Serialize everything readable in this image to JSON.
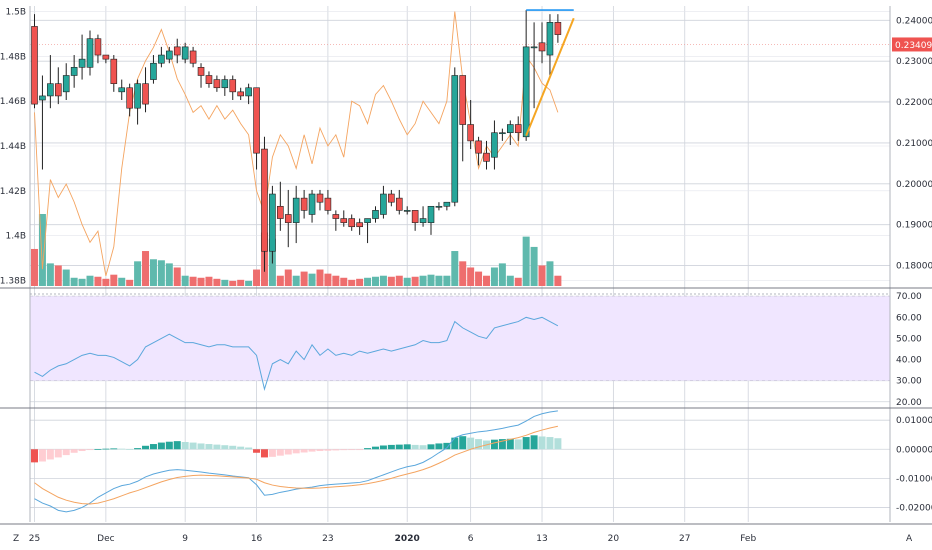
{
  "chart_data": {
    "type": "candlestick",
    "x_labels": [
      {
        "i": 0,
        "text": "25",
        "bold": false
      },
      {
        "i": 9,
        "text": "Dec",
        "bold": false
      },
      {
        "i": 19,
        "text": "9",
        "bold": false
      },
      {
        "i": 28,
        "text": "16",
        "bold": false
      },
      {
        "i": 37,
        "text": "23",
        "bold": false
      },
      {
        "i": 47,
        "text": "2020",
        "bold": true
      },
      {
        "i": 55,
        "text": "6",
        "bold": false
      },
      {
        "i": 64,
        "text": "13",
        "bold": false
      },
      {
        "i": 73,
        "text": "20",
        "bold": false
      },
      {
        "i": 82,
        "text": "27",
        "bold": false
      },
      {
        "i": 90,
        "text": "Feb",
        "bold": false
      }
    ],
    "main": {
      "right_ticks": [
        "0.24000",
        "0.23000",
        "0.22000",
        "0.21000",
        "0.20000",
        "0.19000",
        "0.18000"
      ],
      "right_min": 0.175,
      "right_max": 0.2435,
      "left_ticks": [
        "1.5B",
        "1.48B",
        "1.46B",
        "1.44B",
        "1.42B",
        "1.4B",
        "1.38B"
      ],
      "left_min": 1.3775,
      "left_max": 1.5025,
      "last_price": "0.23409",
      "candles": [
        [
          0,
          0.2385,
          0.2415,
          0.2185,
          0.2195
        ],
        [
          1,
          0.2205,
          0.2265,
          0.2035,
          0.2215
        ],
        [
          2,
          0.2215,
          0.2315,
          0.2185,
          0.2245
        ],
        [
          3,
          0.2245,
          0.2285,
          0.2195,
          0.2215
        ],
        [
          4,
          0.2225,
          0.2295,
          0.2205,
          0.2265
        ],
        [
          5,
          0.2265,
          0.2315,
          0.2235,
          0.2285
        ],
        [
          6,
          0.2285,
          0.2365,
          0.2255,
          0.2305
        ],
        [
          7,
          0.2285,
          0.2375,
          0.2265,
          0.2355
        ],
        [
          8,
          0.2355,
          0.2365,
          0.2295,
          0.2315
        ],
        [
          9,
          0.2315,
          0.2315,
          0.2295,
          0.2305
        ],
        [
          10,
          0.2305,
          0.2315,
          0.2225,
          0.2245
        ],
        [
          11,
          0.2225,
          0.2255,
          0.2205,
          0.2235
        ],
        [
          12,
          0.2235,
          0.2245,
          0.2165,
          0.2185
        ],
        [
          13,
          0.2185,
          0.2255,
          0.2145,
          0.2245
        ],
        [
          14,
          0.2245,
          0.2285,
          0.2175,
          0.2195
        ],
        [
          15,
          0.2255,
          0.2315,
          0.2245,
          0.2295
        ],
        [
          16,
          0.2295,
          0.2335,
          0.2285,
          0.2315
        ],
        [
          17,
          0.2305,
          0.2335,
          0.2295,
          0.2325
        ],
        [
          18,
          0.2335,
          0.2355,
          0.2295,
          0.2315
        ],
        [
          19,
          0.2305,
          0.2345,
          0.2295,
          0.2335
        ],
        [
          20,
          0.2325,
          0.2335,
          0.2285,
          0.2295
        ],
        [
          21,
          0.2285,
          0.2295,
          0.2235,
          0.2265
        ],
        [
          22,
          0.2265,
          0.2275,
          0.2235,
          0.2245
        ],
        [
          23,
          0.2255,
          0.2265,
          0.2225,
          0.2235
        ],
        [
          24,
          0.2235,
          0.2265,
          0.2215,
          0.2255
        ],
        [
          25,
          0.2255,
          0.2265,
          0.2205,
          0.2225
        ],
        [
          26,
          0.2225,
          0.2235,
          0.2205,
          0.2215
        ],
        [
          27,
          0.2215,
          0.2245,
          0.2195,
          0.2235
        ],
        [
          28,
          0.2235,
          0.2235,
          0.2035,
          0.2075
        ],
        [
          29,
          0.2085,
          0.2115,
          0.1785,
          0.1835
        ],
        [
          30,
          0.1835,
          0.1995,
          0.1805,
          0.1975
        ],
        [
          31,
          0.1945,
          0.2005,
          0.1885,
          0.1915
        ],
        [
          32,
          0.1925,
          0.1985,
          0.1845,
          0.1905
        ],
        [
          33,
          0.1905,
          0.1995,
          0.1855,
          0.1965
        ],
        [
          34,
          0.1965,
          0.1985,
          0.1915,
          0.1935
        ],
        [
          35,
          0.1925,
          0.1985,
          0.1905,
          0.1975
        ],
        [
          36,
          0.1975,
          0.1985,
          0.1935,
          0.1955
        ],
        [
          37,
          0.1965,
          0.1985,
          0.1925,
          0.1935
        ],
        [
          38,
          0.1925,
          0.1935,
          0.1885,
          0.1915
        ],
        [
          39,
          0.1915,
          0.1935,
          0.1895,
          0.1905
        ],
        [
          40,
          0.1915,
          0.1925,
          0.1885,
          0.1895
        ],
        [
          41,
          0.1905,
          0.1915,
          0.1875,
          0.1895
        ],
        [
          42,
          0.1905,
          0.1915,
          0.1855,
          0.1915
        ],
        [
          43,
          0.1915,
          0.1945,
          0.1905,
          0.1935
        ],
        [
          44,
          0.1925,
          0.1995,
          0.1915,
          0.1975
        ],
        [
          45,
          0.1975,
          0.1985,
          0.1945,
          0.1955
        ],
        [
          46,
          0.1965,
          0.1985,
          0.1925,
          0.1935
        ],
        [
          47,
          0.1935,
          0.1945,
          0.1925,
          0.1935
        ],
        [
          48,
          0.1935,
          0.1935,
          0.1885,
          0.1905
        ],
        [
          49,
          0.1905,
          0.1945,
          0.1895,
          0.1915
        ],
        [
          50,
          0.1905,
          0.1945,
          0.1875,
          0.1945
        ],
        [
          51,
          0.1945,
          0.1955,
          0.1935,
          0.1945
        ],
        [
          52,
          0.1945,
          0.1955,
          0.1935,
          0.1955
        ],
        [
          53,
          0.1955,
          0.2285,
          0.1945,
          0.2265
        ],
        [
          54,
          0.2265,
          0.2265,
          0.2055,
          0.2145
        ],
        [
          55,
          0.2145,
          0.2205,
          0.2085,
          0.2105
        ],
        [
          56,
          0.2105,
          0.2115,
          0.2045,
          0.2075
        ],
        [
          57,
          0.2075,
          0.2105,
          0.2035,
          0.2055
        ],
        [
          58,
          0.2065,
          0.2155,
          0.2035,
          0.2125
        ],
        [
          59,
          0.2125,
          0.2135,
          0.2105,
          0.2125
        ],
        [
          60,
          0.2125,
          0.2155,
          0.2095,
          0.2145
        ],
        [
          61,
          0.2145,
          0.2165,
          0.2105,
          0.2125
        ],
        [
          62,
          0.2115,
          0.2425,
          0.2105,
          0.2335
        ],
        [
          63,
          0.2335,
          0.2395,
          0.2185,
          0.2335
        ],
        [
          64,
          0.2345,
          0.2395,
          0.2295,
          0.2325
        ],
        [
          65,
          0.2315,
          0.2415,
          0.2265,
          0.2395
        ],
        [
          66,
          0.2395,
          0.2415,
          0.2345,
          0.2365
        ]
      ],
      "line_on_left_scale": [
        [
          0,
          1.455
        ],
        [
          1,
          1.385
        ],
        [
          2,
          1.425
        ],
        [
          3,
          1.417
        ],
        [
          4,
          1.423
        ],
        [
          5,
          1.415
        ],
        [
          6,
          1.405
        ],
        [
          7,
          1.397
        ],
        [
          8,
          1.402
        ],
        [
          9,
          1.382
        ],
        [
          10,
          1.395
        ],
        [
          11,
          1.43
        ],
        [
          12,
          1.455
        ],
        [
          13,
          1.47
        ],
        [
          14,
          1.478
        ],
        [
          15,
          1.484
        ],
        [
          16,
          1.492
        ],
        [
          17,
          1.482
        ],
        [
          18,
          1.47
        ],
        [
          19,
          1.463
        ],
        [
          20,
          1.455
        ],
        [
          21,
          1.458
        ],
        [
          22,
          1.452
        ],
        [
          23,
          1.458
        ],
        [
          24,
          1.452
        ],
        [
          25,
          1.456
        ],
        [
          26,
          1.45
        ],
        [
          27,
          1.445
        ],
        [
          28,
          1.42
        ],
        [
          29,
          1.41
        ],
        [
          30,
          1.435
        ],
        [
          31,
          1.445
        ],
        [
          32,
          1.44
        ],
        [
          33,
          1.43
        ],
        [
          34,
          1.445
        ],
        [
          35,
          1.432
        ],
        [
          36,
          1.448
        ],
        [
          37,
          1.44
        ],
        [
          38,
          1.445
        ],
        [
          39,
          1.435
        ],
        [
          40,
          1.46
        ],
        [
          41,
          1.458
        ],
        [
          42,
          1.45
        ],
        [
          43,
          1.463
        ],
        [
          44,
          1.467
        ],
        [
          45,
          1.46
        ],
        [
          46,
          1.452
        ],
        [
          47,
          1.445
        ],
        [
          48,
          1.45
        ],
        [
          49,
          1.46
        ],
        [
          50,
          1.455
        ],
        [
          51,
          1.45
        ],
        [
          52,
          1.46
        ],
        [
          53,
          1.5
        ],
        [
          54,
          1.47
        ],
        [
          55,
          1.45
        ],
        [
          56,
          1.43
        ],
        [
          57,
          1.44
        ],
        [
          58,
          1.435
        ],
        [
          59,
          1.44
        ],
        [
          60,
          1.445
        ],
        [
          61,
          1.44
        ],
        [
          62,
          1.48
        ],
        [
          63,
          1.475
        ],
        [
          64,
          1.468
        ],
        [
          65,
          1.465
        ],
        [
          66,
          1.455
        ]
      ],
      "horizontal_line_level": 0.2425,
      "horizontal_line_from_i": 62,
      "horizontal_line_to_i": 68,
      "trend_line": [
        [
          62,
          0.2118
        ],
        [
          68,
          0.2405
        ]
      ],
      "price_guide_level": 0.23409,
      "volume_max": 3.5,
      "volume": [
        1.8,
        3.5,
        1.1,
        1.0,
        0.8,
        0.4,
        0.35,
        0.5,
        0.45,
        0.35,
        0.55,
        0.4,
        0.3,
        1.2,
        1.7,
        1.3,
        1.25,
        1.1,
        0.9,
        0.5,
        0.45,
        0.4,
        0.45,
        0.35,
        0.3,
        0.25,
        0.3,
        0.25,
        0.8,
        2.6,
        2.3,
        0.5,
        0.8,
        0.5,
        0.7,
        0.6,
        0.8,
        0.6,
        0.5,
        0.4,
        0.3,
        0.35,
        0.4,
        0.45,
        0.5,
        0.45,
        0.5,
        0.4,
        0.45,
        0.5,
        0.55,
        0.5,
        0.5,
        1.7,
        1.2,
        0.9,
        0.7,
        0.5,
        0.9,
        1.1,
        0.5,
        0.4,
        2.4,
        1.9,
        1.0,
        1.2,
        0.5
      ]
    },
    "rsi": {
      "right_ticks": [
        "70.00",
        "60.00",
        "50.00",
        "40.00",
        "30.00",
        "20.00"
      ],
      "min": 18,
      "max": 72,
      "band": [
        30,
        70
      ],
      "values": [
        34,
        32,
        35,
        37,
        38,
        40,
        42,
        43,
        42,
        42,
        41,
        39,
        37,
        40,
        46,
        48,
        50,
        52,
        50,
        48,
        48,
        47,
        46,
        47,
        47,
        46,
        46,
        46,
        42,
        26,
        38,
        40,
        38,
        44,
        40,
        47,
        42,
        45,
        42,
        43,
        42,
        44,
        43,
        44,
        45,
        44,
        45,
        46,
        47,
        49,
        48,
        48,
        49,
        58,
        55,
        53,
        51,
        50,
        55,
        56,
        57,
        58,
        60,
        59,
        60,
        58,
        56
      ]
    },
    "macd": {
      "right_ticks": [
        "0.01000",
        "0.00000",
        "-0.01000",
        "-0.02000"
      ],
      "min": -0.025,
      "max": 0.0135,
      "histogram": [
        -0.0045,
        -0.0042,
        -0.0035,
        -0.0028,
        -0.002,
        -0.0012,
        -0.0006,
        -0.0002,
        0.0001,
        0.0002,
        0.0003,
        0.0002,
        0.0001,
        0.0004,
        0.0012,
        0.0018,
        0.0023,
        0.0026,
        0.0028,
        0.0025,
        0.0023,
        0.002,
        0.0018,
        0.0016,
        0.0014,
        0.0012,
        0.0009,
        0.0006,
        -0.0012,
        -0.0028,
        -0.0026,
        -0.0022,
        -0.0018,
        -0.0014,
        -0.0011,
        -0.0008,
        -0.0006,
        -0.0005,
        -0.0004,
        -0.0003,
        -0.0002,
        -0.0001,
        0.0004,
        0.0009,
        0.0013,
        0.0015,
        0.0016,
        0.0017,
        0.0015,
        0.0014,
        0.0017,
        0.002,
        0.0022,
        0.004,
        0.0045,
        0.004,
        0.0035,
        0.003,
        0.0033,
        0.0035,
        0.0036,
        0.0034,
        0.0042,
        0.0048,
        0.0044,
        0.0042,
        0.0038
      ],
      "macd_line": [
        -0.017,
        -0.0185,
        -0.0195,
        -0.021,
        -0.0215,
        -0.021,
        -0.02,
        -0.0185,
        -0.0165,
        -0.015,
        -0.0135,
        -0.0125,
        -0.012,
        -0.011,
        -0.0095,
        -0.0085,
        -0.0078,
        -0.0072,
        -0.007,
        -0.0072,
        -0.0075,
        -0.0078,
        -0.0082,
        -0.0085,
        -0.0088,
        -0.0092,
        -0.0095,
        -0.0098,
        -0.0122,
        -0.0158,
        -0.0155,
        -0.0148,
        -0.0143,
        -0.0137,
        -0.0133,
        -0.013,
        -0.0125,
        -0.0122,
        -0.012,
        -0.0118,
        -0.0116,
        -0.0114,
        -0.0108,
        -0.0098,
        -0.0088,
        -0.0078,
        -0.0068,
        -0.006,
        -0.0055,
        -0.0045,
        -0.003,
        -0.0012,
        0.0005,
        0.004,
        0.005,
        0.0055,
        0.006,
        0.0063,
        0.0067,
        0.0072,
        0.0078,
        0.0083,
        0.0097,
        0.0113,
        0.0122,
        0.0128,
        0.0132
      ],
      "signal_line": [
        -0.0115,
        -0.0135,
        -0.015,
        -0.0165,
        -0.0175,
        -0.0182,
        -0.0187,
        -0.0188,
        -0.0185,
        -0.0178,
        -0.017,
        -0.016,
        -0.015,
        -0.0142,
        -0.0132,
        -0.0122,
        -0.0112,
        -0.0104,
        -0.0097,
        -0.0093,
        -0.009,
        -0.0089,
        -0.009,
        -0.0091,
        -0.0093,
        -0.0095,
        -0.0097,
        -0.0099,
        -0.0103,
        -0.0115,
        -0.0123,
        -0.0128,
        -0.0131,
        -0.0133,
        -0.0134,
        -0.0134,
        -0.0133,
        -0.0131,
        -0.0129,
        -0.0127,
        -0.0125,
        -0.0122,
        -0.0118,
        -0.0113,
        -0.0107,
        -0.01,
        -0.0092,
        -0.0085,
        -0.0078,
        -0.007,
        -0.006,
        -0.0048,
        -0.0035,
        -0.002,
        -0.001,
        0.0,
        0.0008,
        0.0015,
        0.0022,
        0.0028,
        0.0034,
        0.004,
        0.0048,
        0.0058,
        0.0066,
        0.0073,
        0.0079
      ]
    }
  },
  "colors": {
    "up": "#26a69a",
    "down": "#ef5350",
    "up_vol": "#5fb9ad",
    "down_vol": "#ee6e6e",
    "hist_up_strong": "#26a69a",
    "hist_up_weak": "#b2dfdb",
    "hist_down_strong": "#ef5350",
    "hist_down_weak": "#ffcdd2",
    "overlay_line": "#f4a460",
    "rsi_line": "#5ba7dc",
    "rsi_band": "#f0e6ff",
    "macd_line": "#5ba7dc",
    "signal_line": "#f4a460",
    "hline": "#2196f3",
    "trend": "#f5a623",
    "price_tag": "#ef5350"
  },
  "corners": {
    "left": "Z",
    "right": "A"
  }
}
